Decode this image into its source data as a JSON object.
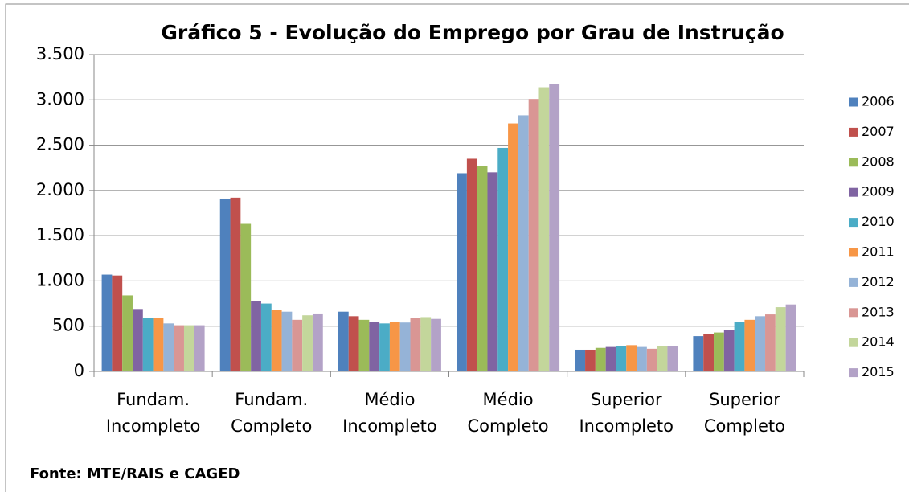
{
  "chart_data": {
    "type": "bar",
    "title": "Gráfico 5 - Evolução do Emprego por Grau de Instrução",
    "categories": [
      "Fundam. Incompleto",
      "Fundam. Completo",
      "Médio Incompleto",
      "Médio Completo",
      "Superior Incompleto",
      "Superior Completo"
    ],
    "series": [
      {
        "name": "2006",
        "color": "#4F81BD",
        "values": [
          1070,
          1910,
          660,
          2190,
          240,
          390
        ]
      },
      {
        "name": "2007",
        "color": "#C0504D",
        "values": [
          1060,
          1920,
          610,
          2350,
          240,
          410
        ]
      },
      {
        "name": "2008",
        "color": "#9BBB59",
        "values": [
          840,
          1630,
          570,
          2270,
          260,
          430
        ]
      },
      {
        "name": "2009",
        "color": "#8064A2",
        "values": [
          690,
          780,
          550,
          2200,
          270,
          460
        ]
      },
      {
        "name": "2010",
        "color": "#4BACC6",
        "values": [
          590,
          750,
          530,
          2470,
          280,
          550
        ]
      },
      {
        "name": "2011",
        "color": "#F79646",
        "values": [
          590,
          680,
          545,
          2740,
          290,
          570
        ]
      },
      {
        "name": "2012",
        "color": "#95B3D7",
        "values": [
          530,
          660,
          540,
          2830,
          270,
          610
        ]
      },
      {
        "name": "2013",
        "color": "#D99694",
        "values": [
          510,
          570,
          590,
          3010,
          250,
          630
        ]
      },
      {
        "name": "2014",
        "color": "#C3D69B",
        "values": [
          510,
          620,
          600,
          3140,
          280,
          710
        ]
      },
      {
        "name": "2015",
        "color": "#B3A2C7",
        "values": [
          510,
          640,
          580,
          3180,
          280,
          740
        ]
      }
    ],
    "ylim": [
      0,
      3500
    ],
    "yticks": [
      0,
      500,
      {
        "value": 1000,
        "label": "1.000"
      },
      {
        "value": 1500,
        "label": "1.500"
      },
      {
        "value": 2000,
        "label": "2.000"
      },
      {
        "value": 2500,
        "label": "2.500"
      },
      {
        "value": 3000,
        "label": "3.000"
      },
      {
        "value": 3500,
        "label": "3.500"
      }
    ],
    "grid": true,
    "legend": "right",
    "source": "Fonte: MTE/RAIS e CAGED"
  }
}
